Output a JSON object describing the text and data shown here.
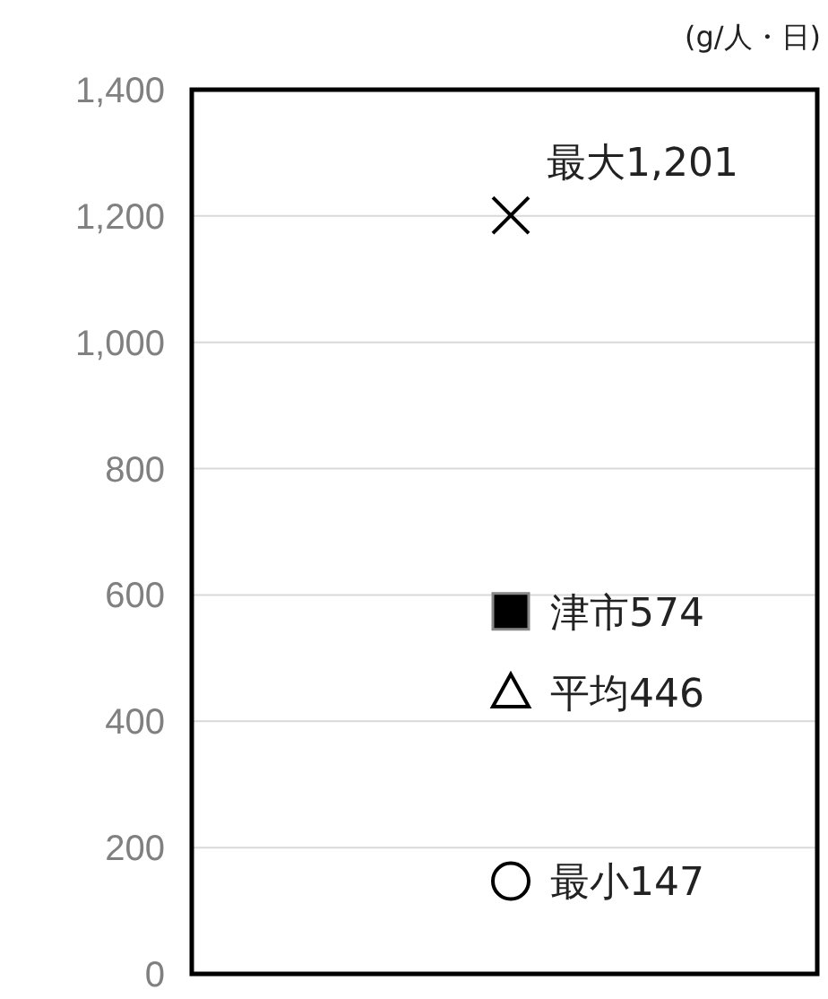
{
  "chart_data": {
    "type": "scatter",
    "ylabel": "(g/人・日)",
    "categories": [
      null
    ],
    "ylim": [
      0,
      1400
    ],
    "yticks": [
      0,
      {
        "value": 200,
        "label": "200"
      },
      {
        "value": 400,
        "label": "400"
      },
      {
        "value": 600,
        "label": "600"
      },
      {
        "value": 800,
        "label": "800"
      },
      {
        "value": 1000,
        "label": "1,000"
      },
      {
        "value": 1200,
        "label": "1,200"
      },
      {
        "value": 1400,
        "label": "1,400"
      }
    ],
    "grid": "y",
    "series": [
      {
        "marker": "cross",
        "color": "#000000",
        "values": [
          1201
        ],
        "value_labels": [
          "最大1,201"
        ]
      },
      {
        "marker": "square",
        "color": "#000000",
        "values": [
          574
        ],
        "value_labels": [
          "津市574"
        ]
      },
      {
        "marker": "triangle",
        "color": "#000000",
        "values": [
          446
        ],
        "value_labels": [
          "平均446"
        ]
      },
      {
        "marker": "circle",
        "color": "#000000",
        "values": [
          147
        ],
        "value_labels": [
          "最小147"
        ]
      }
    ]
  }
}
